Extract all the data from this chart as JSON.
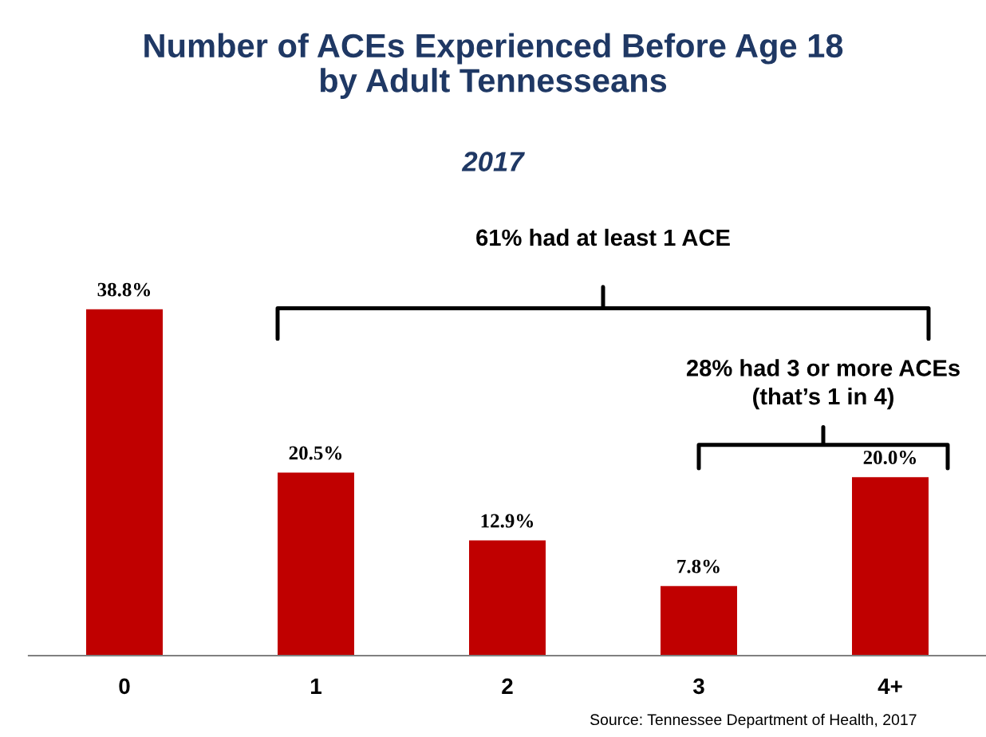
{
  "chart_data": {
    "type": "bar",
    "title": "Number of ACEs Experienced Before Age 18\nby Adult Tennesseans",
    "subtitle": "2017",
    "categories": [
      "0",
      "1",
      "2",
      "3",
      "4+"
    ],
    "values": [
      38.8,
      20.5,
      12.9,
      7.8,
      20.0
    ],
    "value_labels": [
      "38.8%",
      "20.5%",
      "12.9%",
      "7.8%",
      "20.0%"
    ],
    "color": "#c00000",
    "tick_labels": "x",
    "grid": false,
    "legend": false,
    "annotations": [
      "61% had at least 1 ACE",
      "28% had 3 or more ACEs\n(that’s 1 in 4)",
      "Source: Tennessee Department of Health, 2017"
    ]
  }
}
